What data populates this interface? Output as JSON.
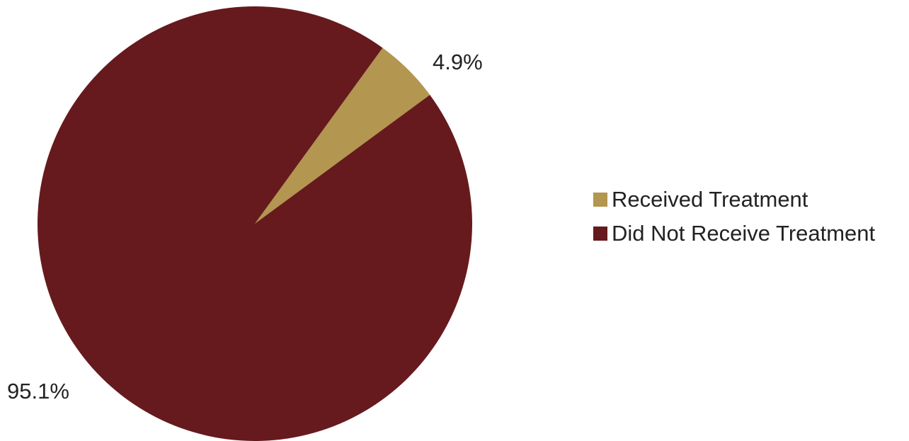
{
  "chart_data": {
    "type": "pie",
    "title": "",
    "start_angle_deg": 0,
    "direction": "clockwise",
    "legend_position": "right",
    "slices": [
      {
        "label": "Received Treatment",
        "value": 4.9,
        "value_label": "4.9%",
        "color": "#b3964f"
      },
      {
        "label": "Did Not Receive Treatment",
        "value": 95.1,
        "value_label": "95.1%",
        "color": "#661a1d"
      }
    ]
  }
}
